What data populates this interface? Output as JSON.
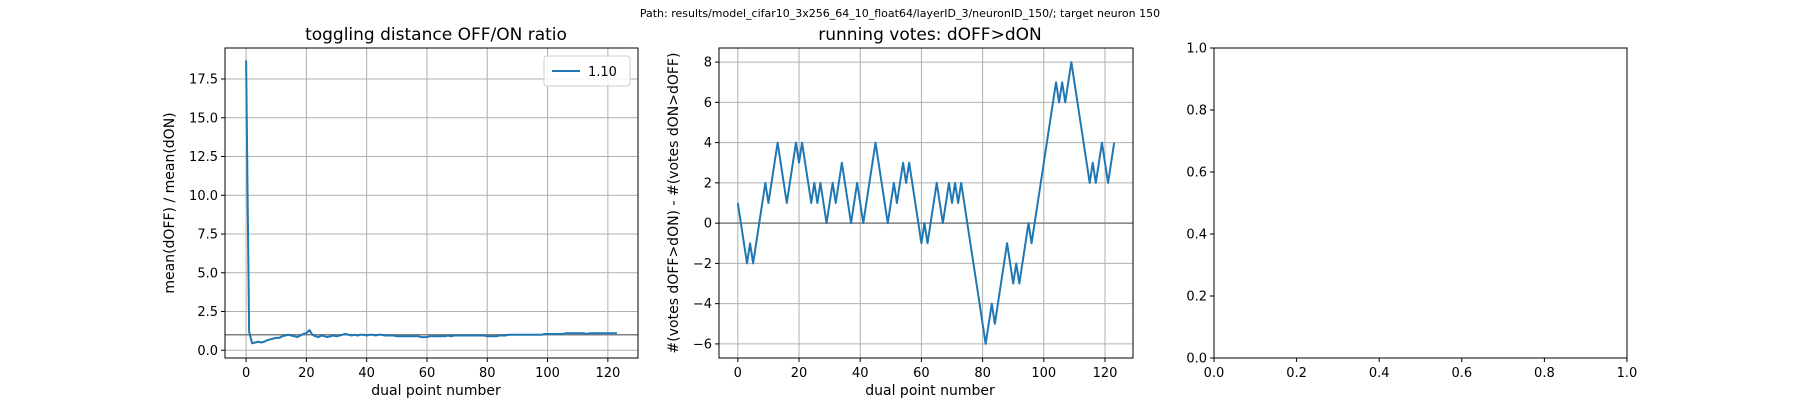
{
  "figure": {
    "suptitle": "Path: results/model_cifar10_3x256_64_10_float64/layerID_3/neuronID_150/; target neuron 150",
    "line_color": "#1f77b4",
    "hline_color": "#808080",
    "grid_color": "#b0b0b0"
  },
  "chart_data": [
    {
      "type": "line",
      "title": "toggling distance OFF/ON ratio",
      "xlabel": "dual point number",
      "ylabel": "mean(dOFF) / mean(dON)",
      "xlim": [
        -7,
        130
      ],
      "ylim": [
        -0.5,
        19.5
      ],
      "xticks": [
        0,
        20,
        40,
        60,
        80,
        100,
        120
      ],
      "yticks": [
        0.0,
        2.5,
        5.0,
        7.5,
        10.0,
        12.5,
        15.0,
        17.5
      ],
      "ytick_labels": [
        "0.0",
        "2.5",
        "5.0",
        "7.5",
        "10.0",
        "12.5",
        "15.0",
        "17.5"
      ],
      "grid": true,
      "hline": 1.0,
      "legend": {
        "location": "upper right",
        "entries": [
          "1.10"
        ]
      },
      "series": [
        {
          "name": "1.10",
          "x": [
            0,
            1,
            2,
            3,
            4,
            5,
            6,
            7,
            8,
            9,
            10,
            11,
            12,
            13,
            14,
            15,
            16,
            17,
            18,
            19,
            20,
            21,
            22,
            23,
            24,
            25,
            26,
            27,
            28,
            29,
            30,
            31,
            32,
            33,
            34,
            35,
            36,
            37,
            38,
            39,
            40,
            41,
            42,
            43,
            44,
            45,
            46,
            47,
            48,
            49,
            50,
            51,
            52,
            53,
            54,
            55,
            56,
            57,
            58,
            59,
            60,
            61,
            62,
            63,
            64,
            65,
            66,
            67,
            68,
            69,
            70,
            71,
            72,
            73,
            74,
            75,
            76,
            77,
            78,
            79,
            80,
            81,
            82,
            83,
            84,
            85,
            86,
            87,
            88,
            89,
            90,
            91,
            92,
            93,
            94,
            95,
            96,
            97,
            98,
            99,
            100,
            101,
            102,
            103,
            104,
            105,
            106,
            107,
            108,
            109,
            110,
            111,
            112,
            113,
            114,
            115,
            116,
            117,
            118,
            119,
            120,
            121,
            122,
            123
          ],
          "values": [
            18.7,
            1.2,
            0.45,
            0.5,
            0.55,
            0.5,
            0.55,
            0.65,
            0.7,
            0.75,
            0.8,
            0.8,
            0.9,
            0.95,
            1.0,
            0.95,
            0.9,
            0.85,
            0.95,
            1.05,
            1.1,
            1.3,
            1.0,
            0.9,
            0.85,
            0.95,
            0.9,
            0.85,
            0.9,
            0.95,
            0.9,
            0.95,
            1.0,
            1.05,
            1.0,
            0.95,
            1.0,
            0.95,
            1.0,
            1.0,
            0.95,
            1.0,
            1.0,
            0.95,
            1.0,
            1.0,
            0.95,
            0.95,
            0.95,
            0.95,
            0.9,
            0.9,
            0.9,
            0.9,
            0.9,
            0.9,
            0.9,
            0.9,
            0.85,
            0.85,
            0.85,
            0.9,
            0.9,
            0.9,
            0.9,
            0.9,
            0.9,
            0.95,
            0.9,
            0.95,
            0.95,
            0.95,
            0.95,
            0.95,
            0.95,
            0.95,
            0.95,
            0.95,
            0.95,
            0.95,
            0.9,
            0.9,
            0.9,
            0.9,
            0.95,
            0.95,
            0.95,
            1.0,
            1.0,
            1.0,
            1.0,
            1.0,
            1.0,
            1.0,
            1.0,
            1.0,
            1.0,
            1.0,
            1.0,
            1.05,
            1.05,
            1.05,
            1.05,
            1.05,
            1.05,
            1.05,
            1.1,
            1.1,
            1.1,
            1.1,
            1.1,
            1.1,
            1.1,
            1.05,
            1.1,
            1.1,
            1.1,
            1.1,
            1.1,
            1.1,
            1.1,
            1.1,
            1.1,
            1.1
          ]
        }
      ]
    },
    {
      "type": "line",
      "title": "running votes: dOFF>dON",
      "xlabel": "dual point number",
      "ylabel": "#(votes dOFF>dON) - #(votes dON>dOFF)",
      "xlim": [
        -6.15,
        129.15
      ],
      "ylim": [
        -6.7,
        8.7
      ],
      "xticks": [
        0,
        20,
        40,
        60,
        80,
        100,
        120
      ],
      "yticks": [
        -6,
        -4,
        -2,
        0,
        2,
        4,
        6,
        8
      ],
      "ytick_labels": [
        "−6",
        "−4",
        "−2",
        "0",
        "2",
        "4",
        "6",
        "8"
      ],
      "grid": true,
      "hline": 0,
      "series": [
        {
          "x": [
            0,
            1,
            2,
            3,
            4,
            5,
            6,
            7,
            8,
            9,
            10,
            11,
            12,
            13,
            14,
            15,
            16,
            17,
            18,
            19,
            20,
            21,
            22,
            23,
            24,
            25,
            26,
            27,
            28,
            29,
            30,
            31,
            32,
            33,
            34,
            35,
            36,
            37,
            38,
            39,
            40,
            41,
            42,
            43,
            44,
            45,
            46,
            47,
            48,
            49,
            50,
            51,
            52,
            53,
            54,
            55,
            56,
            57,
            58,
            59,
            60,
            61,
            62,
            63,
            64,
            65,
            66,
            67,
            68,
            69,
            70,
            71,
            72,
            73,
            74,
            75,
            76,
            77,
            78,
            79,
            80,
            81,
            82,
            83,
            84,
            85,
            86,
            87,
            88,
            89,
            90,
            91,
            92,
            93,
            94,
            95,
            96,
            97,
            98,
            99,
            100,
            101,
            102,
            103,
            104,
            105,
            106,
            107,
            108,
            109,
            110,
            111,
            112,
            113,
            114,
            115,
            116,
            117,
            118,
            119,
            120,
            121,
            122,
            123
          ],
          "values": [
            1,
            0,
            -1,
            -2,
            -1,
            -2,
            -1,
            0,
            1,
            2,
            1,
            2,
            3,
            4,
            3,
            2,
            1,
            2,
            3,
            4,
            3,
            4,
            3,
            2,
            1,
            2,
            1,
            2,
            1,
            0,
            1,
            2,
            1,
            2,
            3,
            2,
            1,
            0,
            1,
            2,
            1,
            0,
            1,
            2,
            3,
            4,
            3,
            2,
            1,
            0,
            1,
            2,
            1,
            2,
            3,
            2,
            3,
            2,
            1,
            0,
            -1,
            0,
            -1,
            0,
            1,
            2,
            1,
            0,
            1,
            2,
            1,
            2,
            1,
            2,
            1,
            0,
            -1,
            -2,
            -3,
            -4,
            -5,
            -6,
            -5,
            -4,
            -5,
            -4,
            -3,
            -2,
            -1,
            -2,
            -3,
            -2,
            -3,
            -2,
            -1,
            0,
            -1,
            0,
            1,
            2,
            3,
            4,
            5,
            6,
            7,
            6,
            7,
            6,
            7,
            8,
            7,
            6,
            5,
            4,
            3,
            2,
            3,
            2,
            3,
            4,
            3,
            2,
            3,
            4
          ]
        }
      ]
    },
    {
      "type": "line",
      "title": "",
      "xlabel": "",
      "ylabel": "",
      "xlim": [
        0.0,
        1.0
      ],
      "ylim": [
        0.0,
        1.0
      ],
      "xticks": [
        0.0,
        0.2,
        0.4,
        0.6,
        0.8,
        1.0
      ],
      "yticks": [
        0.0,
        0.2,
        0.4,
        0.6,
        0.8,
        1.0
      ],
      "xtick_labels": [
        "0.0",
        "0.2",
        "0.4",
        "0.6",
        "0.8",
        "1.0"
      ],
      "ytick_labels": [
        "0.0",
        "0.2",
        "0.4",
        "0.6",
        "0.8",
        "1.0"
      ],
      "grid": false,
      "series": []
    }
  ]
}
